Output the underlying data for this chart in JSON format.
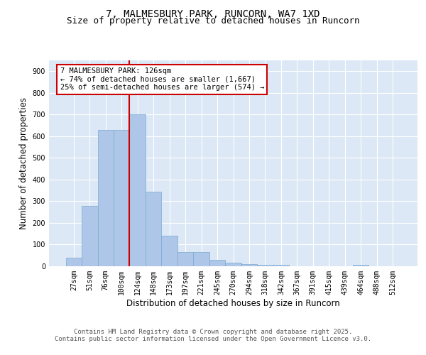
{
  "title1": "7, MALMESBURY PARK, RUNCORN, WA7 1XD",
  "title2": "Size of property relative to detached houses in Runcorn",
  "xlabel": "Distribution of detached houses by size in Runcorn",
  "ylabel": "Number of detached properties",
  "categories": [
    "27sqm",
    "51sqm",
    "76sqm",
    "100sqm",
    "124sqm",
    "148sqm",
    "173sqm",
    "197sqm",
    "221sqm",
    "245sqm",
    "270sqm",
    "294sqm",
    "318sqm",
    "342sqm",
    "367sqm",
    "391sqm",
    "415sqm",
    "439sqm",
    "464sqm",
    "488sqm",
    "512sqm"
  ],
  "values": [
    40,
    280,
    630,
    630,
    700,
    345,
    140,
    65,
    65,
    30,
    15,
    10,
    8,
    5,
    0,
    0,
    0,
    0,
    5,
    0,
    0
  ],
  "bar_color": "#aec7e8",
  "bar_edge_color": "#7aa8d2",
  "red_line_index": 4,
  "annotation_line1": "7 MALMESBURY PARK: 126sqm",
  "annotation_line2": "← 74% of detached houses are smaller (1,667)",
  "annotation_line3": "25% of semi-detached houses are larger (574) →",
  "annotation_box_color": "#ffffff",
  "annotation_box_edge": "#cc0000",
  "ylim": [
    0,
    950
  ],
  "yticks": [
    0,
    100,
    200,
    300,
    400,
    500,
    600,
    700,
    800,
    900
  ],
  "background_color": "#dce8f5",
  "grid_color": "#ffffff",
  "footer_line1": "Contains HM Land Registry data © Crown copyright and database right 2025.",
  "footer_line2": "Contains public sector information licensed under the Open Government Licence v3.0.",
  "title_fontsize": 10,
  "subtitle_fontsize": 9,
  "axis_label_fontsize": 8.5,
  "tick_fontsize": 7,
  "annotation_fontsize": 7.5,
  "footer_fontsize": 6.5
}
